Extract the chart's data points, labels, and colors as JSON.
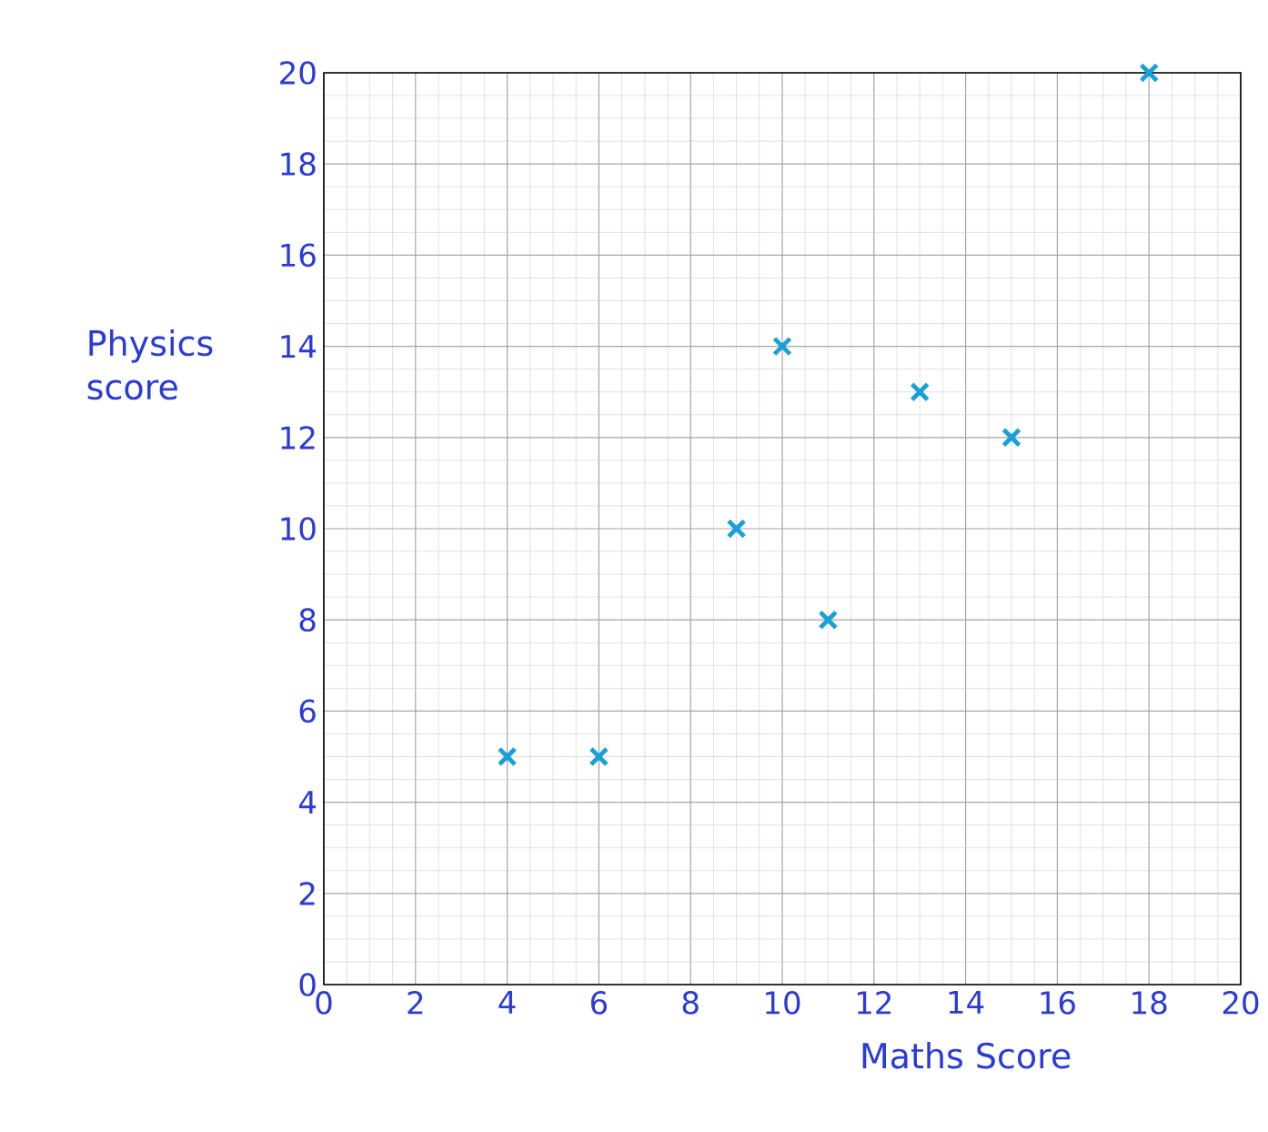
{
  "chart_data": {
    "type": "scatter",
    "xlabel": "Maths Score",
    "ylabel": "Physics score",
    "x": [
      4,
      6,
      9,
      10,
      11,
      13,
      15,
      18
    ],
    "values": [
      5,
      5,
      10,
      14,
      8,
      13,
      12,
      20
    ],
    "color": "#1a9fd8",
    "marker": "cross",
    "xlim": [
      0,
      20
    ],
    "ylim": [
      0,
      20
    ],
    "xticks": [
      0,
      2,
      4,
      6,
      8,
      10,
      12,
      14,
      16,
      18,
      20
    ],
    "yticks": [
      0,
      2,
      4,
      6,
      8,
      10,
      12,
      14,
      16,
      18,
      20
    ],
    "grid": true
  }
}
